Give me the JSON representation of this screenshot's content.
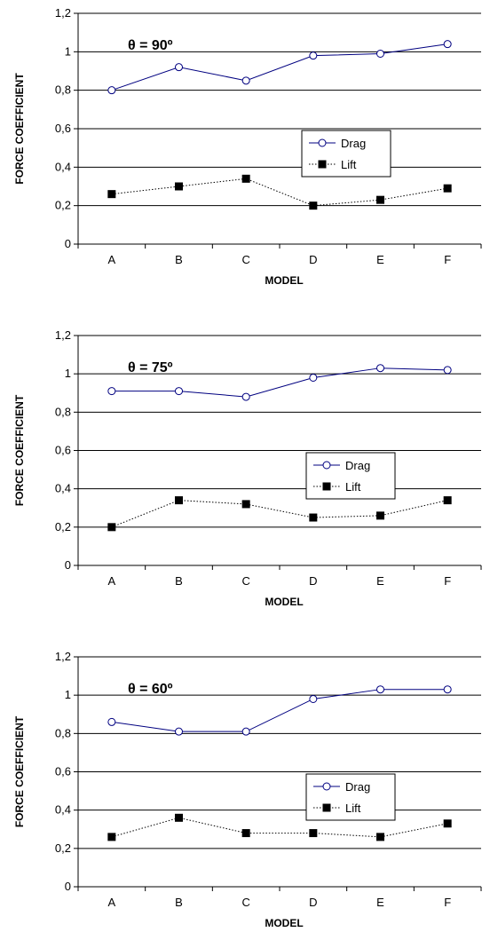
{
  "chart_data": [
    {
      "type": "line",
      "annotation": "θ = 90º",
      "xlabel": "MODEL",
      "ylabel": "FORCE COEFFICIENT",
      "categories": [
        "A",
        "B",
        "C",
        "D",
        "E",
        "F"
      ],
      "ylim": [
        0,
        1.2
      ],
      "yticks": [
        "0",
        "0,2",
        "0,4",
        "0,6",
        "0,8",
        "1",
        "1,2"
      ],
      "grid": true,
      "legend_position": "center-right",
      "series": [
        {
          "name": "Drag",
          "values": [
            0.8,
            0.92,
            0.85,
            0.98,
            0.99,
            1.04
          ],
          "color": "#000080",
          "marker": "open-circle",
          "line": "solid"
        },
        {
          "name": "Lift",
          "values": [
            0.26,
            0.3,
            0.34,
            0.2,
            0.23,
            0.29
          ],
          "color": "#000000",
          "marker": "filled-square",
          "line": "dotted"
        }
      ]
    },
    {
      "type": "line",
      "annotation": "θ = 75º",
      "xlabel": "MODEL",
      "ylabel": "FORCE COEFFICIENT",
      "categories": [
        "A",
        "B",
        "C",
        "D",
        "E",
        "F"
      ],
      "ylim": [
        0,
        1.2
      ],
      "yticks": [
        "0",
        "0,2",
        "0,4",
        "0,6",
        "0,8",
        "1",
        "1,2"
      ],
      "grid": true,
      "legend_position": "center-right",
      "series": [
        {
          "name": "Drag",
          "values": [
            0.91,
            0.91,
            0.88,
            0.98,
            1.03,
            1.02
          ],
          "color": "#000080",
          "marker": "open-circle",
          "line": "solid"
        },
        {
          "name": "Lift",
          "values": [
            0.2,
            0.34,
            0.32,
            0.25,
            0.26,
            0.34
          ],
          "color": "#000000",
          "marker": "filled-square",
          "line": "dotted"
        }
      ]
    },
    {
      "type": "line",
      "annotation": "θ = 60º",
      "xlabel": "MODEL",
      "ylabel": "FORCE COEFFICIENT",
      "categories": [
        "A",
        "B",
        "C",
        "D",
        "E",
        "F"
      ],
      "ylim": [
        0,
        1.2
      ],
      "yticks": [
        "0",
        "0,2",
        "0,4",
        "0,6",
        "0,8",
        "1",
        "1,2"
      ],
      "grid": true,
      "legend_position": "center-right",
      "series": [
        {
          "name": "Drag",
          "values": [
            0.86,
            0.81,
            0.81,
            0.98,
            1.03,
            1.03
          ],
          "color": "#000080",
          "marker": "open-circle",
          "line": "solid"
        },
        {
          "name": "Lift",
          "values": [
            0.26,
            0.36,
            0.28,
            0.28,
            0.26,
            0.33
          ],
          "color": "#000000",
          "marker": "filled-square",
          "line": "dotted"
        }
      ]
    }
  ]
}
